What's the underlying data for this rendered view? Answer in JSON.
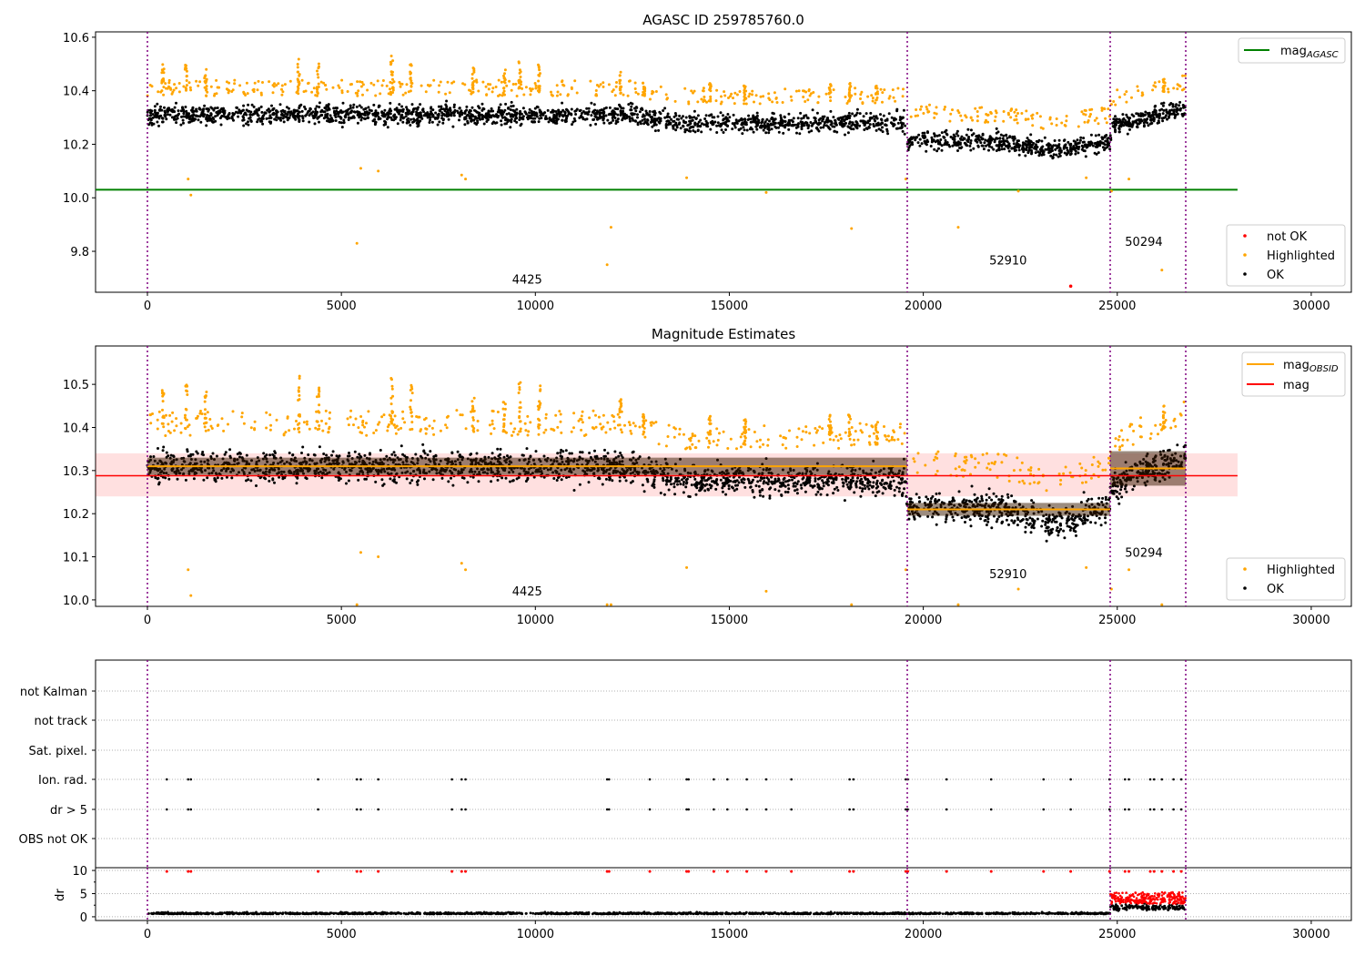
{
  "chart_data": [
    {
      "type": "scatter",
      "title": "AGASC ID 259785760.0",
      "xlim": [
        -1337,
        31034
      ],
      "ylim": [
        9.647,
        10.62
      ],
      "xticks": [
        0,
        5000,
        10000,
        15000,
        20000,
        25000,
        30000
      ],
      "xtick_labels": [
        "0",
        "5000",
        "10000",
        "15000",
        "20000",
        "25000",
        "30000"
      ],
      "yticks": [
        9.8,
        10.0,
        10.2,
        10.4,
        10.6
      ],
      "ytick_labels": [
        "9.8",
        "10.0",
        "10.2",
        "10.4",
        "10.6"
      ],
      "legend_lines": [
        {
          "label": "mag",
          "sub": "AGASC",
          "color": "#008000"
        }
      ],
      "legend_points": [
        {
          "label": "not OK",
          "color": "#ff0000"
        },
        {
          "label": "Highlighted",
          "color": "#ffa500"
        },
        {
          "label": "OK",
          "color": "#000000"
        }
      ],
      "mag_agasc": {
        "value": 10.03,
        "x_range": [
          -1337,
          28100
        ]
      },
      "annotations": [
        {
          "text": "4425",
          "x": 9400,
          "y": 9.68
        },
        {
          "text": "52910",
          "x": 21700,
          "y": 9.75
        },
        {
          "text": "50294",
          "x": 25200,
          "y": 9.82
        }
      ],
      "not_ok_points": [
        [
          23800,
          9.67
        ]
      ],
      "highlighted_low": [
        [
          1050,
          10.07
        ],
        [
          1120,
          10.01
        ],
        [
          5400,
          9.83
        ],
        [
          5500,
          10.11
        ],
        [
          5950,
          10.1
        ],
        [
          8100,
          10.085
        ],
        [
          8200,
          10.07
        ],
        [
          11850,
          9.75
        ],
        [
          11950,
          9.89
        ],
        [
          13900,
          10.075
        ],
        [
          15950,
          10.02
        ],
        [
          18150,
          9.885
        ],
        [
          19550,
          10.07
        ],
        [
          20900,
          9.89
        ],
        [
          22450,
          10.025
        ],
        [
          24200,
          10.075
        ],
        [
          24850,
          10.025
        ],
        [
          25300,
          10.07
        ],
        [
          26150,
          9.73
        ]
      ]
    },
    {
      "type": "scatter",
      "title": "Magnitude Estimates",
      "xlim": [
        -1337,
        31034
      ],
      "ylim": [
        9.985,
        10.589
      ],
      "xticks": [
        0,
        5000,
        10000,
        15000,
        20000,
        25000,
        30000
      ],
      "xtick_labels": [
        "0",
        "5000",
        "10000",
        "15000",
        "20000",
        "25000",
        "30000"
      ],
      "yticks": [
        10.0,
        10.1,
        10.2,
        10.3,
        10.4,
        10.5
      ],
      "ytick_labels": [
        "10.0",
        "10.1",
        "10.2",
        "10.3",
        "10.4",
        "10.5"
      ],
      "legend_lines": [
        {
          "label": "mag",
          "sub": "OBSID",
          "color": "#ffa500"
        },
        {
          "label": "mag",
          "sub": "",
          "color": "#ff0000"
        }
      ],
      "legend_points": [
        {
          "label": "Highlighted",
          "color": "#ffa500"
        },
        {
          "label": "OK",
          "color": "#000000"
        }
      ],
      "mag": {
        "value": 10.288,
        "band": [
          10.24,
          10.34
        ],
        "x_range": [
          -1337,
          28100
        ]
      },
      "mag_obsid": [
        {
          "x": [
            0,
            19587
          ],
          "value": 10.31,
          "std": 0.02
        },
        {
          "x": [
            19587,
            24818
          ],
          "value": 10.21,
          "std": 0.015
        },
        {
          "x": [
            24818,
            26765
          ],
          "value": 10.305,
          "std": 0.04
        }
      ],
      "annotations": [
        {
          "text": "4425",
          "x": 9400,
          "y": 10.01
        },
        {
          "text": "52910",
          "x": 21700,
          "y": 10.05
        },
        {
          "text": "50294",
          "x": 25200,
          "y": 10.1
        }
      ]
    },
    {
      "type": "scatter",
      "title": "",
      "xlim": [
        -1337,
        31034
      ],
      "xticks": [
        0,
        5000,
        10000,
        15000,
        20000,
        25000,
        30000
      ],
      "xtick_labels": [
        "0",
        "5000",
        "10000",
        "15000",
        "20000",
        "25000",
        "30000"
      ],
      "flag_rows": [
        "not Kalman",
        "not track",
        "Sat. pixel.",
        "Ion. rad.",
        "dr > 5",
        "OBS not OK"
      ],
      "flag_x": [
        500,
        1050,
        1120,
        4400,
        5400,
        5500,
        5950,
        7850,
        8100,
        8200,
        11850,
        11900,
        12950,
        13900,
        13950,
        14600,
        14950,
        15450,
        15950,
        16600,
        18100,
        18200,
        19550,
        19600,
        20600,
        21750,
        23100,
        23800,
        24800,
        25200,
        25300,
        25850,
        25950,
        26150,
        26450,
        26650
      ],
      "dr_ylabel": "dr",
      "dr_yticks": [
        0,
        5,
        10
      ],
      "dr_ytick_labels": [
        "0",
        "5",
        "10"
      ],
      "dr_ylim": [
        -0.8,
        10.6
      ],
      "dr_baseline": 0.6,
      "dr_segment_high": {
        "x": [
          24818,
          26765
        ],
        "value": 2.0
      }
    }
  ],
  "trend": [
    [
      0,
      10.31
    ],
    [
      12500,
      10.31
    ],
    [
      13500,
      10.28
    ],
    [
      19500,
      10.28
    ],
    [
      19600,
      10.22
    ],
    [
      22000,
      10.21
    ],
    [
      23300,
      10.18
    ],
    [
      24800,
      10.21
    ],
    [
      24850,
      10.27
    ],
    [
      26700,
      10.33
    ]
  ],
  "obsid_boundaries": [
    0,
    19587,
    24818,
    26765
  ],
  "highlight_spikes": [
    [
      400,
      10.5
    ],
    [
      1000,
      10.5
    ],
    [
      1500,
      10.49
    ],
    [
      3900,
      10.52
    ],
    [
      4400,
      10.51
    ],
    [
      6300,
      10.53
    ],
    [
      6800,
      10.5
    ],
    [
      8400,
      10.49
    ],
    [
      9200,
      10.48
    ],
    [
      9600,
      10.51
    ],
    [
      10100,
      10.5
    ],
    [
      12200,
      10.47
    ],
    [
      12800,
      10.43
    ],
    [
      14500,
      10.43
    ],
    [
      15400,
      10.42
    ],
    [
      17600,
      10.43
    ],
    [
      18100,
      10.43
    ],
    [
      18800,
      10.42
    ],
    [
      26200,
      10.45
    ]
  ]
}
